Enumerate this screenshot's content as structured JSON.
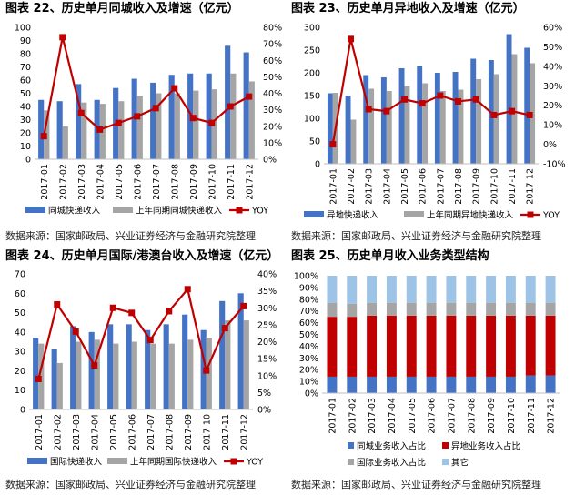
{
  "panels": [
    {
      "title": "图表 22、历史单月同城收入及增速（亿元）",
      "source": "数据来源：国家邮政局、兴业证券经济与金融研究院整理"
    },
    {
      "title": "图表 23、历史单月异地收入及增速（亿元）",
      "source": "数据来源：国家邮政局、兴业证券经济与金融研究院整理"
    },
    {
      "title": "图表 24、历史单月国际/港澳台收入及增速（亿元）",
      "source": "数据来源：国家邮政局、兴业证券经济与金融研究院整理"
    },
    {
      "title": "图表 25、历史单月收入业务类型结构",
      "source": "数据来源：国家邮政局、兴业证券经济与金融研究院整理"
    }
  ],
  "colors": {
    "blue": "#4472C4",
    "gray": "#A5A5A5",
    "red": "#C00000",
    "sky": "#9DC3E6",
    "axis": "#BFBFBF"
  },
  "chart_data": [
    {
      "type": "bar+line",
      "categories": [
        "2017-01",
        "2017-02",
        "2017-03",
        "2017-04",
        "2017-05",
        "2017-06",
        "2017-07",
        "2017-08",
        "2017-09",
        "2017-10",
        "2017-11",
        "2017-12"
      ],
      "series": [
        {
          "name": "同城快递收入",
          "type": "bar",
          "axis": "left",
          "values": [
            45,
            44,
            57,
            45,
            54,
            61,
            58,
            64,
            65,
            65,
            86,
            81
          ]
        },
        {
          "name": "上年同期同城快递收入",
          "type": "bar",
          "axis": "left",
          "values": [
            37,
            25,
            43,
            42,
            44,
            48,
            50,
            50,
            52,
            53,
            65,
            59
          ]
        },
        {
          "name": "YOY",
          "type": "line",
          "axis": "right",
          "values": [
            0.14,
            0.74,
            0.28,
            0.18,
            0.22,
            0.26,
            0.31,
            0.43,
            0.25,
            0.22,
            0.32,
            0.38
          ]
        }
      ],
      "ylim_left": [
        0,
        100
      ],
      "left_ticks": [
        "0",
        "10",
        "20",
        "30",
        "40",
        "50",
        "60",
        "70",
        "80",
        "90",
        "100"
      ],
      "ylim_right": [
        0,
        0.8
      ],
      "right_ticks": [
        "0%",
        "10%",
        "20%",
        "30%",
        "40%",
        "50%",
        "60%",
        "70%",
        "80%"
      ]
    },
    {
      "type": "bar+line",
      "categories": [
        "2017-01",
        "2017-02",
        "2017-03",
        "2017-04",
        "2017-05",
        "2017-06",
        "2017-07",
        "2017-08",
        "2017-09",
        "2017-10",
        "2017-11",
        "2017-12"
      ],
      "series": [
        {
          "name": "异地快递收入",
          "type": "bar",
          "axis": "left",
          "values": [
            155,
            150,
            195,
            190,
            210,
            215,
            200,
            202,
            231,
            228,
            285,
            255
          ]
        },
        {
          "name": "上年同期异地快递收入",
          "type": "bar",
          "axis": "left",
          "values": [
            156,
            97,
            165,
            160,
            170,
            177,
            160,
            163,
            186,
            197,
            241,
            221
          ]
        },
        {
          "name": "YOY",
          "type": "line",
          "axis": "right",
          "values": [
            0.0,
            0.54,
            0.18,
            0.17,
            0.23,
            0.21,
            0.25,
            0.22,
            0.23,
            0.15,
            0.17,
            0.15
          ]
        }
      ],
      "ylim_left": [
        0,
        300
      ],
      "left_ticks": [
        "0",
        "50",
        "100",
        "150",
        "200",
        "250",
        "300"
      ],
      "ylim_right": [
        -0.1,
        0.6
      ],
      "right_ticks": [
        "-10%",
        "0%",
        "10%",
        "20%",
        "30%",
        "40%",
        "50%",
        "60%"
      ]
    },
    {
      "type": "bar+line",
      "categories": [
        "2017-01",
        "2017-02",
        "2017-03",
        "2017-04",
        "2017-05",
        "2017-06",
        "2017-07",
        "2017-08",
        "2017-09",
        "2017-10",
        "2017-11",
        "2017-12"
      ],
      "series": [
        {
          "name": "国际快递收入",
          "type": "bar",
          "axis": "left",
          "values": [
            37,
            31,
            43,
            40,
            44,
            44,
            41,
            44,
            49,
            41,
            56,
            60
          ]
        },
        {
          "name": "上年同期国际快递收入",
          "type": "bar",
          "axis": "left",
          "values": [
            34,
            24,
            35,
            36,
            34,
            35,
            34,
            34,
            36,
            37,
            46,
            46
          ]
        },
        {
          "name": "YOY",
          "type": "line",
          "axis": "right",
          "values": [
            0.09,
            0.31,
            0.23,
            0.13,
            0.3,
            0.285,
            0.205,
            0.29,
            0.355,
            0.115,
            0.24,
            0.305
          ]
        }
      ],
      "ylim_left": [
        0,
        70
      ],
      "left_ticks": [
        "0",
        "10",
        "20",
        "30",
        "40",
        "50",
        "60",
        "70"
      ],
      "ylim_right": [
        0,
        0.4
      ],
      "right_ticks": [
        "0%",
        "5%",
        "10%",
        "15%",
        "20%",
        "25%",
        "30%",
        "35%",
        "40%"
      ]
    },
    {
      "type": "stacked-bar",
      "categories": [
        "2017-01",
        "2017-02",
        "2017-03",
        "2017-04",
        "2017-05",
        "2017-06",
        "2017-07",
        "2017-08",
        "2017-09",
        "2017-10",
        "2017-11",
        "2017-12"
      ],
      "series": [
        {
          "name": "同城业务收入占比",
          "values": [
            0.14,
            0.14,
            0.14,
            0.14,
            0.14,
            0.14,
            0.14,
            0.14,
            0.14,
            0.14,
            0.15,
            0.15
          ]
        },
        {
          "name": "异地业务收入占比",
          "values": [
            0.51,
            0.51,
            0.52,
            0.52,
            0.52,
            0.52,
            0.52,
            0.52,
            0.52,
            0.52,
            0.51,
            0.51
          ]
        },
        {
          "name": "国际业务收入占比",
          "values": [
            0.12,
            0.11,
            0.11,
            0.11,
            0.11,
            0.11,
            0.11,
            0.11,
            0.11,
            0.11,
            0.11,
            0.11
          ]
        },
        {
          "name": "其它",
          "values": [
            0.23,
            0.24,
            0.23,
            0.23,
            0.23,
            0.23,
            0.23,
            0.23,
            0.23,
            0.23,
            0.23,
            0.23
          ]
        }
      ],
      "ylim": [
        0,
        1
      ],
      "ticks": [
        "0%",
        "10%",
        "20%",
        "30%",
        "40%",
        "50%",
        "60%",
        "70%",
        "80%",
        "90%",
        "100%"
      ]
    }
  ]
}
